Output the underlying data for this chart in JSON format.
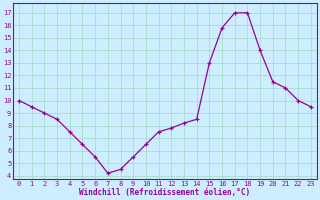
{
  "x": [
    0,
    1,
    2,
    3,
    4,
    5,
    6,
    7,
    8,
    9,
    10,
    11,
    12,
    13,
    14,
    15,
    16,
    17,
    18,
    19,
    20,
    21,
    22,
    23
  ],
  "y": [
    10,
    9.5,
    9,
    8.5,
    7.5,
    6.5,
    5.5,
    4.2,
    4.5,
    5.5,
    6.5,
    7.5,
    7.8,
    8.2,
    8.5,
    13,
    15.8,
    17,
    17,
    14,
    11.5,
    11,
    10,
    9.5
  ],
  "line_color": "#990099",
  "marker": "+",
  "bg_color": "#cceeff",
  "grid_color": "#aaddcc",
  "xlabel": "Windchill (Refroidissement éolien,°C)",
  "xlabel_color": "#990099",
  "ylabel_ticks": [
    4,
    5,
    6,
    7,
    8,
    9,
    10,
    11,
    12,
    13,
    14,
    15,
    16,
    17
  ],
  "xticks": [
    0,
    1,
    2,
    3,
    4,
    5,
    6,
    7,
    8,
    9,
    10,
    11,
    12,
    13,
    14,
    15,
    16,
    17,
    18,
    19,
    20,
    21,
    22,
    23
  ],
  "ylim": [
    3.7,
    17.8
  ],
  "xlim": [
    -0.5,
    23.5
  ]
}
